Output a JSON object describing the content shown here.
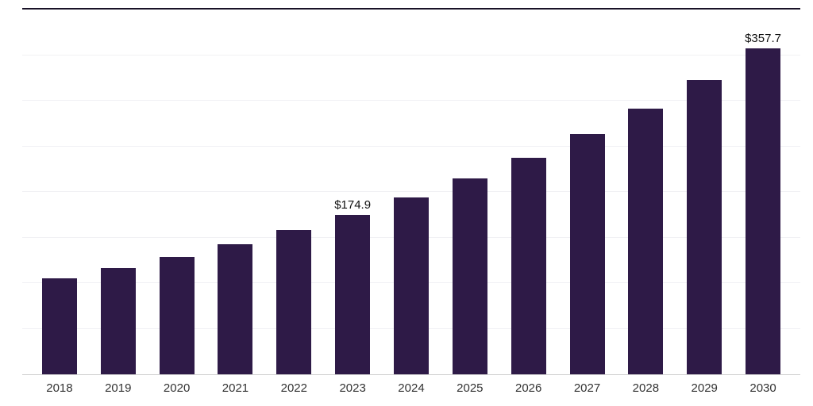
{
  "chart_data": {
    "type": "bar",
    "title": "",
    "xlabel": "",
    "ylabel": "",
    "categories": [
      "2018",
      "2019",
      "2020",
      "2021",
      "2022",
      "2023",
      "2024",
      "2025",
      "2026",
      "2027",
      "2028",
      "2029",
      "2030"
    ],
    "values": [
      104.9,
      116.2,
      128.7,
      142.6,
      157.9,
      174.9,
      193.7,
      214.6,
      237.7,
      263.3,
      291.6,
      323.0,
      357.7
    ],
    "data_labels": {
      "2023": "$174.9",
      "2030": "$357.7"
    },
    "ylim": [
      0,
      400
    ],
    "gridline_values": [
      50,
      100,
      150,
      200,
      250,
      300,
      350
    ],
    "grid": true,
    "legend": "none",
    "bar_color": "#2E1A47",
    "axis_line_color": "#cfcfcf",
    "top_border_color": "#191227",
    "gridline_color": "#f1f1f4",
    "tick_label_color": "#333333",
    "data_label_color": "#111111"
  }
}
